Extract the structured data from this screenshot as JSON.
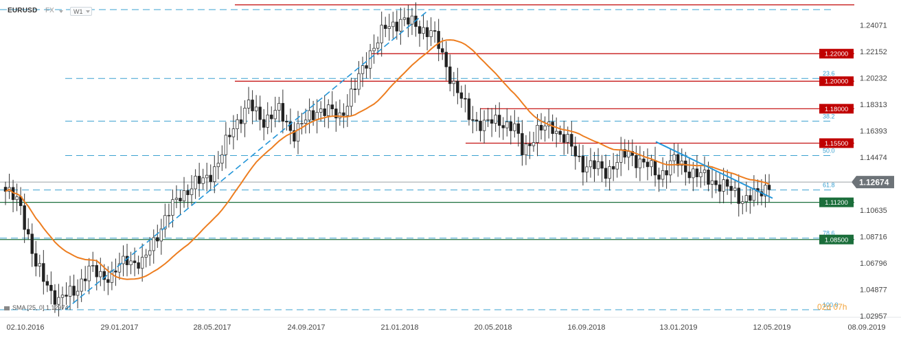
{
  "header": {
    "symbol": "EURUSD",
    "market": "FX",
    "timeframe": "W1"
  },
  "indicator_legend": "SMA [25, 0] 1.12974",
  "countdown": "02d 07h",
  "colors": {
    "candle_up_border": "#333333",
    "candle_down": "#222222",
    "sma": "#ed7d1f",
    "resistance": "#c00000",
    "support": "#1b6e3b",
    "fib": "#3aa0d0",
    "trendline": "#2496d9",
    "current_price_badge": "#6d7378"
  },
  "chart_data": {
    "type": "candlestick",
    "x_tick_labels": [
      "02.10.2016",
      "29.01.2017",
      "28.05.2017",
      "24.09.2017",
      "21.01.2018",
      "20.05.2018",
      "16.09.2018",
      "13.01.2019",
      "12.05.2019",
      "08.09.2019"
    ],
    "y_tick_labels": [
      "1.24071",
      "1.22152",
      "1.20232",
      "1.18313",
      "1.16393",
      "1.14474",
      "1.12674",
      "1.10635",
      "1.08716",
      "1.06796",
      "1.04877",
      "1.02957"
    ],
    "ylim": [
      1.0295,
      1.253
    ],
    "current_price": "1.12674",
    "horizontal_levels": [
      {
        "label": "1.22000",
        "value": 1.22,
        "kind": "resistance"
      },
      {
        "label": "1.20000",
        "value": 1.2,
        "kind": "resistance"
      },
      {
        "label": "1.18000",
        "value": 1.18,
        "kind": "resistance"
      },
      {
        "label": "1.15500",
        "value": 1.155,
        "kind": "resistance"
      },
      {
        "label": "1.11200",
        "value": 1.112,
        "kind": "support"
      },
      {
        "label": "1.08500",
        "value": 1.085,
        "kind": "support"
      }
    ],
    "top_level": 1.2555,
    "fib_levels": [
      {
        "label": "",
        "value": 1.252
      },
      {
        "label": "23.6",
        "value": 1.202
      },
      {
        "label": "38.2",
        "value": 1.171
      },
      {
        "label": "50.0",
        "value": 1.146
      },
      {
        "label": "61.8",
        "value": 1.121
      },
      {
        "label": "78.6",
        "value": 1.086
      },
      {
        "label": "100.0",
        "value": 1.034
      }
    ],
    "trendlines": [
      {
        "from": [
          0.095,
          1.034
        ],
        "to": [
          0.625,
          1.252
        ],
        "style": "dashed"
      },
      {
        "from": [
          0.955,
          1.156
        ],
        "to": [
          1.125,
          1.115
        ],
        "style": "solid"
      }
    ],
    "candles_summary": {
      "start_close": 1.12,
      "low": 1.034,
      "high": 1.255,
      "end_close": 1.12674
    },
    "sma": {
      "name": "SMA [25, 0]",
      "period": 25
    }
  }
}
